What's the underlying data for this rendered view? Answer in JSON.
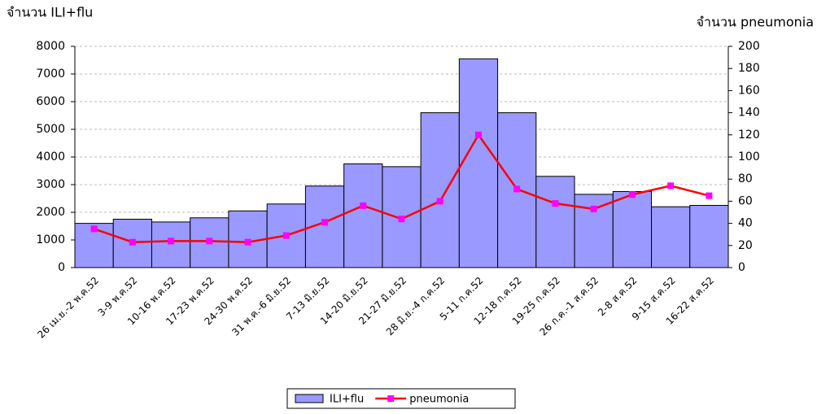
{
  "chart_data": {
    "type": "bar",
    "y_label": "จำนวน ILI+flu",
    "y2_label": "จำนวน pneumonia",
    "categories": [
      "26 เม.ย.-2 พ.ค.52",
      "3-9 พ.ค.52",
      "10-16 พ.ค.52",
      "17-23 พ.ค.52",
      "24-30 พ.ค.52",
      "31 พ.ค.-6 มิ.ย.52",
      "7-13 มิ.ย.52",
      "14-20 มิ.ย.52",
      "21-27 มิ.ย.52",
      "28 มิ.ย.-4 ก.ค.52",
      "5-11 ก.ค.52",
      "12-18 ก.ค.52",
      "19-25 ก.ค.52",
      "26 ก.ค.-1 ส.ค.52",
      "2-8 ส.ค.52",
      "9-15 ส.ค.52",
      "16-22 ส.ค.52"
    ],
    "series": [
      {
        "name": "ILI+flu",
        "type": "bar",
        "color": "#9999ff",
        "values": [
          1600,
          1750,
          1650,
          1800,
          2050,
          2300,
          2950,
          3750,
          3650,
          5600,
          7550,
          5600,
          3300,
          2650,
          2750,
          2200,
          2250
        ]
      },
      {
        "name": "pneumonia",
        "type": "line",
        "axis": "y2",
        "color": "#ff0000",
        "marker_color": "#ff00ff",
        "values": [
          35,
          23,
          24,
          24,
          23,
          29,
          41,
          56,
          44,
          60,
          120,
          71,
          58,
          53,
          66,
          74,
          65
        ]
      }
    ],
    "ylim": [
      0,
      8000
    ],
    "yticks": [
      0,
      1000,
      2000,
      3000,
      4000,
      5000,
      6000,
      7000,
      8000
    ],
    "y2lim": [
      0,
      200
    ],
    "y2ticks": [
      0,
      20,
      40,
      60,
      80,
      100,
      120,
      140,
      160,
      180,
      200
    ],
    "grid": true,
    "legend": "bottom"
  }
}
